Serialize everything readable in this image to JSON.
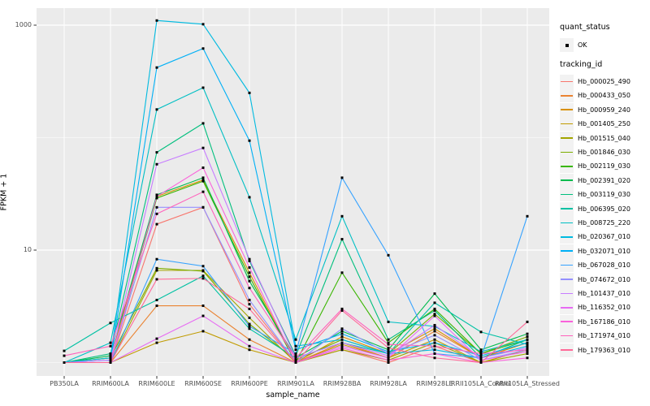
{
  "chart_data": {
    "type": "line",
    "title": "",
    "xlabel": "sample_name",
    "ylabel": "FPKM + 1",
    "y_scale": "log10",
    "ylim": [
      1,
      1100
    ],
    "y_ticks": [
      1000,
      10
    ],
    "y_minor_gridlines": [
      100,
      1
    ],
    "grid": "white-on-gray",
    "panel_bg": "#EBEBEB",
    "grid_color": "#FFFFFF",
    "point_color": "#000000",
    "point_shape": "small-black-square",
    "categories": [
      "PB350LA",
      "RRIM600LA",
      "RRIM600LE",
      "RRIM600SE",
      "RRIM600PE",
      "RRIM901LA",
      "RRIM928BA",
      "RRIM928LA",
      "RRIM928LE",
      "RRII105LA_Control",
      "RRII105LA_Stressed"
    ],
    "legend": {
      "position": "right",
      "quant_status_title": "quant_status",
      "quant_status_items": [
        {
          "label": "OK"
        }
      ],
      "tracking_id_title": "tracking_id"
    },
    "series": [
      {
        "name": "Hb_000025_490",
        "color": "#F8766D",
        "values": [
          1,
          1,
          17,
          24,
          3.3,
          1,
          1.3,
          1,
          1.4,
          1,
          1.3
        ]
      },
      {
        "name": "Hb_000433_050",
        "color": "#EA8331",
        "values": [
          1,
          1,
          3.2,
          3.2,
          1.6,
          1,
          1.5,
          1.1,
          1.9,
          1.1,
          1.5
        ]
      },
      {
        "name": "Hb_000959_240",
        "color": "#D89000",
        "values": [
          1,
          1.1,
          30,
          42,
          6.3,
          1,
          1.7,
          1.2,
          2.0,
          1.1,
          1.5
        ]
      },
      {
        "name": "Hb_001405_250",
        "color": "#C09B00",
        "values": [
          1,
          1,
          1.5,
          1.9,
          1.3,
          1,
          1.45,
          1.1,
          1.6,
          1,
          1.3
        ]
      },
      {
        "name": "Hb_001515_040",
        "color": "#A3A500",
        "values": [
          1,
          1,
          6.6,
          6.6,
          2.5,
          1,
          1.3,
          1.05,
          1.5,
          1,
          1.2
        ]
      },
      {
        "name": "Hb_001846_030",
        "color": "#7CAE00",
        "values": [
          1,
          1.1,
          6.9,
          6.5,
          2.2,
          1.05,
          1.6,
          1.2,
          2.7,
          1.2,
          1.7
        ]
      },
      {
        "name": "Hb_002119_030",
        "color": "#39B600",
        "values": [
          1,
          1,
          29,
          41,
          5.8,
          1,
          6.3,
          1.5,
          3.0,
          1.2,
          1.6
        ]
      },
      {
        "name": "Hb_002391_020",
        "color": "#00BB4E",
        "values": [
          1,
          1.15,
          31,
          44,
          5.3,
          1.1,
          1.9,
          1.3,
          4.1,
          1.3,
          1.8
        ]
      },
      {
        "name": "Hb_003119_030",
        "color": "#00BF7D",
        "values": [
          1,
          1.2,
          74,
          134,
          8.0,
          1.15,
          12.5,
          1.6,
          2.9,
          1.1,
          1.6
        ]
      },
      {
        "name": "Hb_006395_020",
        "color": "#00C1A3",
        "values": [
          1.27,
          2.25,
          3.6,
          5.9,
          2.0,
          1.1,
          1.5,
          1.2,
          3.4,
          1.87,
          1.45
        ]
      },
      {
        "name": "Hb_008725_220",
        "color": "#00BFC4",
        "values": [
          1,
          1.5,
          178,
          278,
          29.5,
          1.6,
          20,
          2.3,
          2.1,
          1.25,
          1.6
        ]
      },
      {
        "name": "Hb_020367_010",
        "color": "#00BAE0",
        "values": [
          1,
          1.1,
          1100,
          1020,
          250,
          1.4,
          1.6,
          1.2,
          1.3,
          1.1,
          1.4
        ]
      },
      {
        "name": "Hb_032071_010",
        "color": "#00B0F6",
        "values": [
          1,
          1.05,
          420,
          620,
          94,
          1.3,
          1.8,
          1.25,
          1.5,
          1.15,
          1.5
        ]
      },
      {
        "name": "Hb_067028_010",
        "color": "#35A2FF",
        "values": [
          1,
          1,
          8.3,
          7.2,
          2.1,
          1.2,
          44,
          9.0,
          1.2,
          1.1,
          20
        ]
      },
      {
        "name": "Hb_074672_010",
        "color": "#9590FF",
        "values": [
          1,
          1,
          24,
          24,
          3.6,
          1,
          2.0,
          1.2,
          1.75,
          1.05,
          1.3
        ]
      },
      {
        "name": "Hb_101437_010",
        "color": "#C77CFF",
        "values": [
          1,
          1.05,
          58,
          81,
          8.3,
          1.1,
          1.5,
          1.15,
          2.15,
          1.1,
          1.35
        ]
      },
      {
        "name": "Hb_116352_010",
        "color": "#E76BF3",
        "values": [
          1,
          1,
          1.63,
          2.6,
          1.4,
          1,
          1.4,
          1.1,
          2.6,
          1.05,
          1.25
        ]
      },
      {
        "name": "Hb_167186_010",
        "color": "#FA62DB",
        "values": [
          1,
          1,
          30,
          54,
          7.0,
          1,
          1.35,
          1.05,
          1.2,
          1,
          1.1
        ]
      },
      {
        "name": "Hb_171974_010",
        "color": "#FF62BC",
        "values": [
          1.15,
          1.4,
          21,
          33,
          4.6,
          1.1,
          3.0,
          1.45,
          1.4,
          1.2,
          1.3
        ]
      },
      {
        "name": "Hb_179363_010",
        "color": "#FF6A98",
        "values": [
          1,
          1,
          5.5,
          5.6,
          3.0,
          1,
          2.9,
          1.35,
          1.1,
          1,
          2.3
        ]
      }
    ]
  }
}
